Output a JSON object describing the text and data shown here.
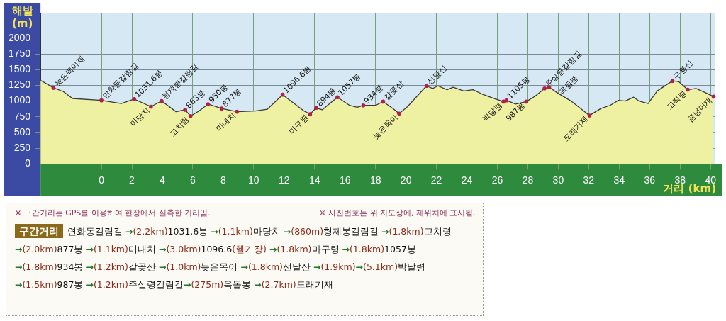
{
  "chart_data": {
    "type": "area",
    "ylabel": "해발 (m)",
    "xlabel": "거리 (km)",
    "color": "#3a3a3a",
    "x": [
      -4.0,
      -3.15,
      -2.5,
      -1.9,
      0,
      1.3,
      2.15,
      3.25,
      3.95,
      4.9,
      5.5,
      5.85,
      6.4,
      7.0,
      7.9,
      8.9,
      10.1,
      10.9,
      11.9,
      13.25,
      13.7,
      14.1,
      14.5,
      15.1,
      15.5,
      16.3,
      16.8,
      17.2,
      18.0,
      18.5,
      19.15,
      19.55,
      20.1,
      21.35,
      21.75,
      22.1,
      22.7,
      23.1,
      23.8,
      24.4,
      25.0,
      25.9,
      26.4,
      26.6,
      27.2,
      27.9,
      28.5,
      29.1,
      29.4,
      30.0,
      30.9,
      32.05,
      32.8,
      33.4,
      33.95,
      34.4,
      34.95,
      35.3,
      35.9,
      36.5,
      37.5,
      37.9,
      38.5,
      39.05,
      39.6,
      40.2
    ],
    "values": [
      1330,
      1210,
      1150,
      1040,
      1010,
      960,
      1030,
      910,
      1000,
      830,
      860,
      760,
      840,
      950,
      880,
      830,
      840,
      870,
      1100,
      850,
      790,
      890,
      860,
      980,
      1060,
      930,
      900,
      930,
      930,
      990,
      880,
      800,
      910,
      1240,
      1200,
      1240,
      1180,
      1220,
      1160,
      1180,
      1110,
      1030,
      990,
      1010,
      950,
      990,
      1080,
      1200,
      1220,
      1120,
      990,
      770,
      880,
      930,
      1010,
      1000,
      1060,
      1000,
      960,
      1160,
      1320,
      1310,
      1180,
      1200,
      1140,
      1070
    ],
    "xlim": [
      -4,
      40.3
    ],
    "xticks": [
      0,
      2,
      4,
      6,
      8,
      10,
      12,
      14,
      16,
      18,
      20,
      22,
      24,
      26,
      28,
      30,
      32,
      34,
      36,
      38,
      40
    ],
    "ylim": [
      0,
      2400
    ],
    "yticks": [
      0,
      250,
      500,
      750,
      1000,
      1250,
      1500,
      1750,
      2000
    ],
    "grid": true,
    "legend": false,
    "annotations": [
      {
        "text": "늦은맥이재",
        "x": -3.15,
        "y": 1210
      },
      {
        "text": "연화동갈림길",
        "x": 0,
        "y": 1010
      },
      {
        "text": "1031.6봉",
        "x": 2.15,
        "y": 1030
      },
      {
        "text": "마당치",
        "x": 3.25,
        "y": 910
      },
      {
        "text": "형제봉갈림길",
        "x": 3.95,
        "y": 1000
      },
      {
        "text": "863봉",
        "x": 5.5,
        "y": 860
      },
      {
        "text": "고치령",
        "x": 5.85,
        "y": 760
      },
      {
        "text": "950봉",
        "x": 7.0,
        "y": 950
      },
      {
        "text": "877봉",
        "x": 7.9,
        "y": 880
      },
      {
        "text": "미내치",
        "x": 8.9,
        "y": 830
      },
      {
        "text": "1096.6봉",
        "x": 11.9,
        "y": 1100
      },
      {
        "text": "마구령",
        "x": 13.7,
        "y": 790
      },
      {
        "text": "894봉",
        "x": 14.1,
        "y": 890
      },
      {
        "text": "1057봉",
        "x": 15.5,
        "y": 1060
      },
      {
        "text": "934봉",
        "x": 17.2,
        "y": 930
      },
      {
        "text": "갈곶산",
        "x": 18.5,
        "y": 990
      },
      {
        "text": "늦은목이",
        "x": 19.55,
        "y": 800
      },
      {
        "text": "선달산",
        "x": 21.35,
        "y": 1240
      },
      {
        "text": "박달령",
        "x": 26.4,
        "y": 990
      },
      {
        "text": "1105봉",
        "x": 26.6,
        "y": 1010
      },
      {
        "text": "987봉",
        "x": 27.9,
        "y": 990
      },
      {
        "text": "주실령갈림길",
        "x": 29.1,
        "y": 1200
      },
      {
        "text": "옥돌봉",
        "x": 29.4,
        "y": 1220
      },
      {
        "text": "도래기재",
        "x": 32.05,
        "y": 770
      },
      {
        "text": "구룡산",
        "x": 37.5,
        "y": 1320
      },
      {
        "text": "고직령",
        "x": 38.5,
        "y": 1180
      },
      {
        "text": "곰넘이재",
        "x": 40.2,
        "y": 1070
      },
      "※ 구간거리는 GPS를 이용하여 현장에서 실측한 거리임.",
      "※ 사진번호는 위 지도상에, 제위치에 표시됨.",
      "구간거리",
      "연화동갈림길 →(2.2km)1031.6봉 →(1.1km)마당치 →(860m)형제봉갈림길 →(1.8km)고치령",
      "→(2.0km)877봉 →(1.1km)미내치 →(3.0km)1096.6(헬기장) →(1.8km)마구령 →(1.8km)1057봉",
      "→(1.8km)934봉 →(1.2km)갈곶산 →(1.0km)늦은목이 →(1.8km)선달산 →(1.9km)→(5.1km)박달령",
      "→(1.5km)987봉 →(1.2km)주실령갈림길→(275m)옥돌봉 →(2.7km)도래기재"
    ]
  }
}
